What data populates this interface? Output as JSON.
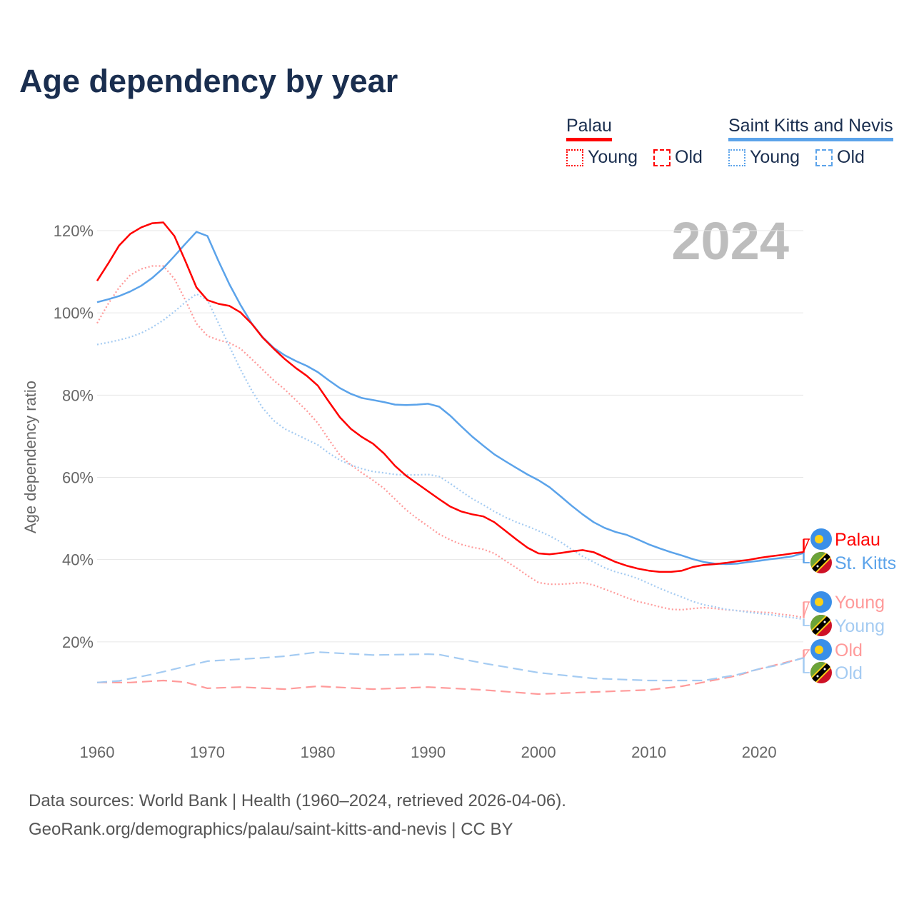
{
  "title": "Age dependency by year",
  "legend": {
    "groups": [
      {
        "name": "Palau",
        "color": "#ff0000",
        "items": [
          {
            "label": "Young",
            "style": "dotted"
          },
          {
            "label": "Old",
            "style": "dashed"
          }
        ]
      },
      {
        "name": "Saint Kitts and Nevis",
        "color": "#5ba3ea",
        "items": [
          {
            "label": "Young",
            "style": "dotted"
          },
          {
            "label": "Old",
            "style": "dashed"
          }
        ]
      }
    ]
  },
  "year_label": "2024",
  "end_labels": [
    {
      "text": "Palau",
      "color": "#ff0000",
      "flag": "palau"
    },
    {
      "text": "St. Kitts",
      "color": "#5ba3ea",
      "flag": "skn"
    },
    {
      "text": "Young",
      "color": "#ff9a9a",
      "flag": "palau"
    },
    {
      "text": "Young",
      "color": "#a4cbf2",
      "flag": "skn"
    },
    {
      "text": "Old",
      "color": "#ff9a9a",
      "flag": "palau"
    },
    {
      "text": "Old",
      "color": "#a4cbf2",
      "flag": "skn"
    }
  ],
  "sources": {
    "line1": "Data sources: World Bank | Health (1960–2024, retrieved 2026-04-06).",
    "line2": "GeoRank.org/demographics/palau/saint-kitts-and-nevis | CC BY"
  },
  "chart_data": {
    "type": "line",
    "title": "Age dependency by year",
    "xlabel": "",
    "ylabel": "Age dependency ratio",
    "xlim": [
      1960,
      2024
    ],
    "ylim": [
      0,
      120
    ],
    "xticks": [
      "1960",
      "1970",
      "1980",
      "1990",
      "2000",
      "2010",
      "2020"
    ],
    "yticks": [
      "20%",
      "40%",
      "60%",
      "80%",
      "100%",
      "120%"
    ],
    "grid": true,
    "legend_position": "top-right",
    "series": [
      {
        "name": "Palau",
        "style": "solid",
        "color": "#ff0000",
        "x0": 1960,
        "values": [
          107.8,
          112,
          116.4,
          119.2,
          120.8,
          121.8,
          122,
          118.7,
          112.6,
          106.2,
          103.1,
          102.2,
          101.7,
          100.1,
          97.4,
          94,
          91.3,
          88.8,
          86.6,
          84.7,
          82.3,
          78.4,
          74.6,
          71.8,
          69.8,
          68.2,
          65.8,
          62.8,
          60.4,
          58.5,
          56.6,
          54.7,
          52.9,
          51.7,
          51,
          50.5,
          49.1,
          47,
          44.9,
          42.9,
          41.5,
          41.3,
          41.6,
          42,
          42.3,
          41.8,
          40.6,
          39.4,
          38.5,
          37.8,
          37.3,
          37,
          37,
          37.3,
          38.2,
          38.7,
          38.9,
          39.2,
          39.6,
          39.9,
          40.4,
          40.8,
          41.1,
          41.5,
          41.8
        ]
      },
      {
        "name": "Saint Kitts and Nevis",
        "style": "solid",
        "color": "#5ba3ea",
        "x0": 1960,
        "values": [
          102.6,
          103.3,
          104.1,
          105.2,
          106.6,
          108.5,
          110.9,
          113.8,
          116.8,
          119.7,
          118.7,
          112.6,
          106.9,
          101.9,
          97.5,
          94.1,
          91.5,
          89.7,
          88.3,
          87.1,
          85.6,
          83.6,
          81.7,
          80.3,
          79.3,
          78.8,
          78.3,
          77.7,
          77.6,
          77.7,
          77.9,
          77.2,
          75,
          72.4,
          69.9,
          67.7,
          65.6,
          63.9,
          62.3,
          60.7,
          59.3,
          57.6,
          55.4,
          53.1,
          51,
          49.1,
          47.7,
          46.7,
          46,
          44.9,
          43.7,
          42.7,
          41.8,
          41,
          40.1,
          39.4,
          39,
          38.9,
          39,
          39.4,
          39.7,
          40.1,
          40.4,
          40.8,
          41.6
        ]
      },
      {
        "name": "Palau Young",
        "style": "dotted",
        "color": "#ff9a9a",
        "x0": 1960,
        "values": [
          97.5,
          102.2,
          106.2,
          109.2,
          110.7,
          111.4,
          111.4,
          108.3,
          103.1,
          97.4,
          94.4,
          93.4,
          92.7,
          91.3,
          88.8,
          86.2,
          83.6,
          81.4,
          78.8,
          76.2,
          73.2,
          69.2,
          65.4,
          63,
          61.1,
          59.3,
          57.3,
          54.7,
          52.1,
          50,
          48.1,
          46.2,
          44.8,
          43.7,
          43,
          42.5,
          41.5,
          39.7,
          38,
          36.1,
          34.4,
          34,
          34,
          34.2,
          34.4,
          33.8,
          32.8,
          31.8,
          30.7,
          29.8,
          29.2,
          28.5,
          27.9,
          27.8,
          28.1,
          28.3,
          28.1,
          27.8,
          27.6,
          27.4,
          27.2,
          27.1,
          26.7,
          26.4,
          25.9
        ]
      },
      {
        "name": "Saint Kitts and Nevis Young",
        "style": "dotted",
        "color": "#a4cbf2",
        "x0": 1960,
        "values": [
          92.3,
          92.8,
          93.4,
          94.1,
          95.1,
          96.5,
          98.2,
          100.3,
          102.6,
          104.6,
          103.1,
          97.5,
          91.8,
          86.2,
          81.2,
          76.9,
          73.8,
          71.8,
          70.5,
          69.2,
          67.9,
          65.9,
          64.2,
          63,
          62.1,
          61.4,
          61.1,
          60.7,
          60.6,
          60.6,
          60.7,
          60.2,
          58.5,
          56.6,
          54.8,
          53.3,
          51.7,
          50.3,
          49.1,
          48.1,
          47,
          45.8,
          44.3,
          42.5,
          40.8,
          39.4,
          38,
          37,
          36.3,
          35.4,
          34.2,
          33,
          31.9,
          30.9,
          29.8,
          29,
          28.5,
          27.9,
          27.6,
          27.2,
          26.9,
          26.6,
          26.2,
          25.9,
          25.5
        ]
      },
      {
        "name": "Palau Old",
        "style": "dashed",
        "color": "#ff9a9a",
        "x": [
          1960,
          1963,
          1966,
          1968,
          1970,
          1973,
          1977,
          1980,
          1985,
          1990,
          1995,
          2000,
          2005,
          2010,
          2013,
          2015,
          2018,
          2020,
          2022,
          2024
        ],
        "values": [
          10.1,
          10.1,
          10.6,
          10.2,
          8.7,
          9,
          8.5,
          9.2,
          8.5,
          9,
          8.3,
          7.3,
          7.8,
          8.3,
          9.2,
          10.2,
          11.8,
          13.4,
          14.7,
          16.1
        ]
      },
      {
        "name": "Saint Kitts and Nevis Old",
        "style": "dashed",
        "color": "#a4cbf2",
        "x": [
          1960,
          1962,
          1965,
          1968,
          1970,
          1975,
          1977,
          1980,
          1985,
          1990,
          1991,
          1995,
          2000,
          2005,
          2010,
          2015,
          2018,
          2020,
          2022,
          2024
        ],
        "values": [
          10.1,
          10.5,
          12.1,
          14,
          15.3,
          16.1,
          16.5,
          17.5,
          16.8,
          17,
          16.9,
          14.8,
          12.5,
          11.1,
          10.6,
          10.6,
          12,
          13.4,
          14.5,
          16.1
        ]
      }
    ]
  }
}
